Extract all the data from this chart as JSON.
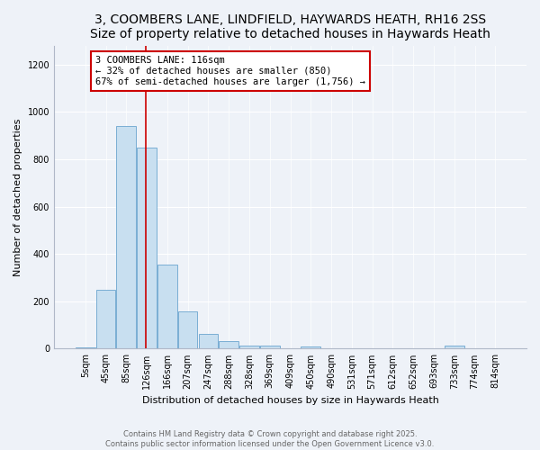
{
  "title": "3, COOMBERS LANE, LINDFIELD, HAYWARDS HEATH, RH16 2SS",
  "subtitle": "Size of property relative to detached houses in Haywards Heath",
  "xlabel": "Distribution of detached houses by size in Haywards Heath",
  "ylabel": "Number of detached properties",
  "categories": [
    "5sqm",
    "45sqm",
    "85sqm",
    "126sqm",
    "166sqm",
    "207sqm",
    "247sqm",
    "288sqm",
    "328sqm",
    "369sqm",
    "409sqm",
    "450sqm",
    "490sqm",
    "531sqm",
    "571sqm",
    "612sqm",
    "652sqm",
    "693sqm",
    "733sqm",
    "774sqm",
    "814sqm"
  ],
  "values": [
    5,
    248,
    940,
    848,
    356,
    157,
    62,
    32,
    12,
    12,
    0,
    10,
    0,
    0,
    0,
    0,
    0,
    0,
    12,
    0,
    0
  ],
  "bar_color": "#c8dff0",
  "bar_edge_color": "#7aaed4",
  "vline_pos": 2.95,
  "vline_label": "3 COOMBERS LANE: 116sqm",
  "annotation_line1": "← 32% of detached houses are smaller (850)",
  "annotation_line2": "67% of semi-detached houses are larger (1,756) →",
  "annotation_box_color": "#ffffff",
  "annotation_box_edge": "#cc0000",
  "vline_color": "#cc0000",
  "ylim": [
    0,
    1280
  ],
  "yticks": [
    0,
    200,
    400,
    600,
    800,
    1000,
    1200
  ],
  "footer1": "Contains HM Land Registry data © Crown copyright and database right 2025.",
  "footer2": "Contains public sector information licensed under the Open Government Licence v3.0.",
  "bg_color": "#eef2f8",
  "plot_bg_color": "#eef2f8",
  "title_fontsize": 10,
  "axis_label_fontsize": 8,
  "tick_fontsize": 7,
  "annotation_fontsize": 7.5
}
